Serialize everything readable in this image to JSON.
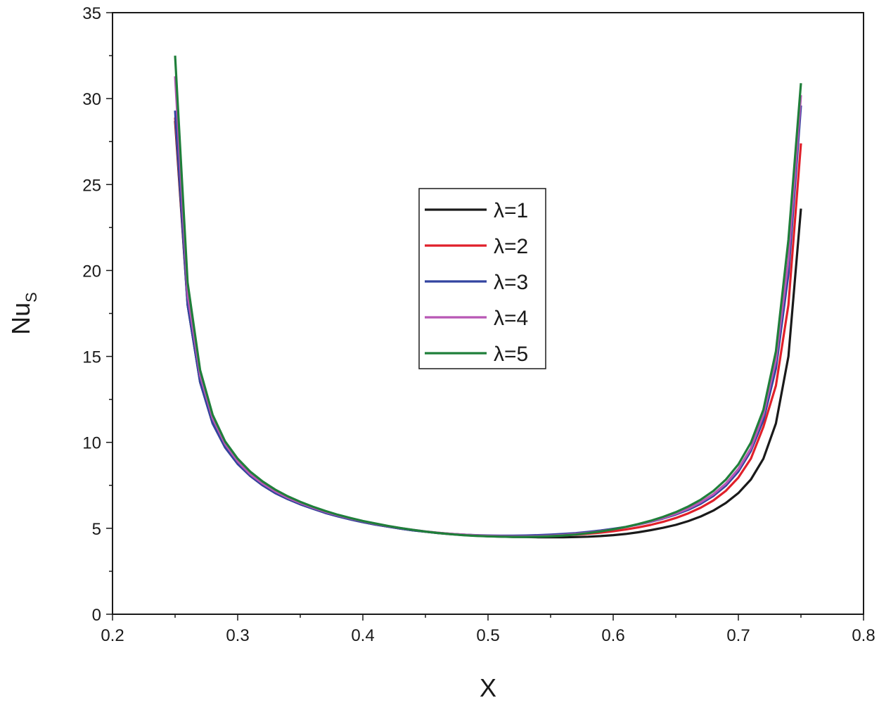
{
  "chart_data": {
    "type": "line",
    "title": "",
    "xlabel": "X",
    "ylabel_main": "Nu",
    "ylabel_sub": "S",
    "xlim": [
      0.2,
      0.8
    ],
    "ylim": [
      0,
      35
    ],
    "xticks": [
      0.2,
      0.3,
      0.4,
      0.5,
      0.6,
      0.7,
      0.8
    ],
    "xtick_labels": [
      "0.2",
      "0.3",
      "0.4",
      "0.5",
      "0.6",
      "0.7",
      "0.8"
    ],
    "yticks": [
      0,
      5,
      10,
      15,
      20,
      25,
      30,
      35
    ],
    "ytick_labels": [
      "0",
      "5",
      "10",
      "15",
      "20",
      "25",
      "30",
      "35"
    ],
    "grid": false,
    "legend_position": "center",
    "x": [
      0.25,
      0.26,
      0.27,
      0.28,
      0.29,
      0.3,
      0.31,
      0.32,
      0.33,
      0.34,
      0.35,
      0.36,
      0.37,
      0.38,
      0.39,
      0.4,
      0.41,
      0.42,
      0.43,
      0.44,
      0.45,
      0.46,
      0.47,
      0.48,
      0.49,
      0.5,
      0.51,
      0.52,
      0.53,
      0.54,
      0.55,
      0.56,
      0.57,
      0.58,
      0.59,
      0.6,
      0.61,
      0.62,
      0.63,
      0.64,
      0.65,
      0.66,
      0.67,
      0.68,
      0.69,
      0.7,
      0.71,
      0.72,
      0.73,
      0.74,
      0.75
    ],
    "series": [
      {
        "name": "λ=1",
        "color": "#1a1a1a",
        "values": [
          28.7,
          18.0,
          13.5,
          11.1,
          9.7,
          8.75,
          8.05,
          7.5,
          7.05,
          6.7,
          6.4,
          6.15,
          5.9,
          5.7,
          5.52,
          5.36,
          5.22,
          5.1,
          4.98,
          4.88,
          4.8,
          4.72,
          4.66,
          4.61,
          4.57,
          4.54,
          4.52,
          4.5,
          4.49,
          4.48,
          4.48,
          4.48,
          4.49,
          4.51,
          4.55,
          4.6,
          4.67,
          4.77,
          4.89,
          5.03,
          5.2,
          5.42,
          5.69,
          6.03,
          6.47,
          7.05,
          7.84,
          9.05,
          11.1,
          15.0,
          23.6
        ]
      },
      {
        "name": "λ=2",
        "color": "#e0202a",
        "values": [
          28.9,
          18.1,
          13.6,
          11.2,
          9.75,
          8.8,
          8.1,
          7.55,
          7.1,
          6.73,
          6.43,
          6.17,
          5.93,
          5.73,
          5.55,
          5.39,
          5.25,
          5.12,
          5.0,
          4.9,
          4.81,
          4.74,
          4.68,
          4.63,
          4.59,
          4.56,
          4.54,
          4.53,
          4.53,
          4.54,
          4.56,
          4.59,
          4.63,
          4.68,
          4.75,
          4.83,
          4.93,
          5.05,
          5.2,
          5.38,
          5.6,
          5.87,
          6.2,
          6.62,
          7.18,
          7.95,
          9.05,
          10.9,
          13.3,
          18.0,
          27.4
        ]
      },
      {
        "name": "λ=3",
        "color": "#3344a0",
        "values": [
          29.3,
          18.0,
          13.5,
          11.1,
          9.7,
          8.75,
          8.05,
          7.5,
          7.05,
          6.7,
          6.4,
          6.14,
          5.9,
          5.7,
          5.52,
          5.36,
          5.22,
          5.1,
          4.98,
          4.88,
          4.8,
          4.73,
          4.67,
          4.63,
          4.6,
          4.58,
          4.57,
          4.57,
          4.58,
          4.6,
          4.63,
          4.67,
          4.72,
          4.79,
          4.87,
          4.97,
          5.08,
          5.22,
          5.38,
          5.57,
          5.8,
          6.08,
          6.43,
          6.88,
          7.48,
          8.3,
          9.5,
          11.3,
          14.3,
          19.8,
          29.6
        ]
      },
      {
        "name": "λ=4",
        "color": "#b857b5",
        "values": [
          31.3,
          18.6,
          13.9,
          11.4,
          9.9,
          8.9,
          8.15,
          7.6,
          7.15,
          6.78,
          6.47,
          6.2,
          5.96,
          5.75,
          5.57,
          5.41,
          5.26,
          5.13,
          5.01,
          4.91,
          4.82,
          4.74,
          4.68,
          4.63,
          4.59,
          4.56,
          4.54,
          4.53,
          4.53,
          4.54,
          4.57,
          4.61,
          4.67,
          4.74,
          4.83,
          4.94,
          5.07,
          5.22,
          5.4,
          5.6,
          5.85,
          6.15,
          6.52,
          6.98,
          7.6,
          8.45,
          9.65,
          11.6,
          14.8,
          20.6,
          30.2
        ]
      },
      {
        "name": "λ=5",
        "color": "#1f7f3a",
        "values": [
          32.5,
          19.3,
          14.2,
          11.6,
          10.05,
          9.05,
          8.3,
          7.72,
          7.25,
          6.86,
          6.54,
          6.26,
          6.01,
          5.79,
          5.6,
          5.43,
          5.28,
          5.14,
          5.02,
          4.91,
          4.81,
          4.73,
          4.66,
          4.6,
          4.56,
          4.53,
          4.51,
          4.5,
          4.5,
          4.51,
          4.54,
          4.58,
          4.64,
          4.72,
          4.82,
          4.94,
          5.08,
          5.25,
          5.44,
          5.67,
          5.94,
          6.27,
          6.67,
          7.17,
          7.83,
          8.72,
          9.98,
          11.9,
          15.3,
          21.8,
          30.9
        ]
      }
    ]
  }
}
